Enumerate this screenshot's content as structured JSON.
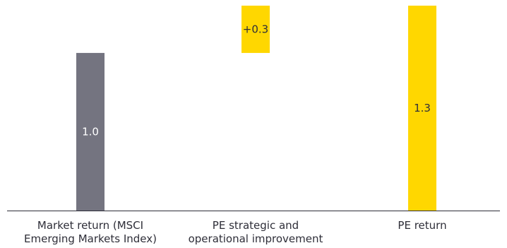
{
  "chart_data": {
    "type": "bar",
    "subtype": "waterfall",
    "title": "",
    "xlabel": "",
    "ylabel": "",
    "ylim": [
      0,
      1.3
    ],
    "grid": false,
    "categories": [
      "Market return (MSCI Emerging Markets Index)",
      "PE strategic and operational improvement",
      "PE return"
    ],
    "category_lines": [
      [
        "Market return (MSCI",
        "Emerging Markets Index)"
      ],
      [
        "PE strategic and",
        "operational improvement"
      ],
      [
        "PE return"
      ]
    ],
    "bars": [
      {
        "category": "Market return (MSCI Emerging Markets Index)",
        "base": 0,
        "value": 1.0,
        "label": "1.0",
        "color": "#747480",
        "label_color": "#ffffff"
      },
      {
        "category": "PE strategic and operational improvement",
        "base": 1.0,
        "value": 0.3,
        "label": "+0.3",
        "color": "#ffd700",
        "label_color": "#2e2e38"
      },
      {
        "category": "PE return",
        "base": 0,
        "value": 1.3,
        "label": "1.3",
        "color": "#ffd700",
        "label_color": "#2e2e38"
      }
    ],
    "axis_color": "#2e2e38"
  }
}
